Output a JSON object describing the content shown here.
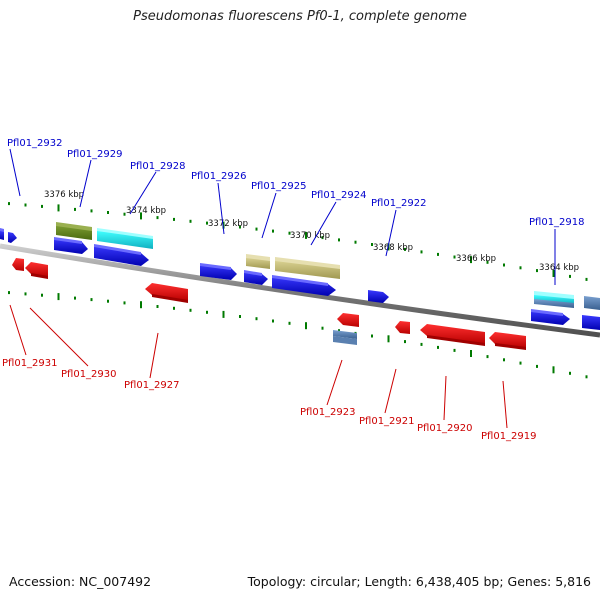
{
  "title": "Pseudomonas fluorescens Pf0-1, complete genome",
  "accession_text": "Accession: NC_007492",
  "summary_text": "Topology: circular; Length: 6,438,405 bp; Genes: 5,816",
  "colors": {
    "forward_label": "#0000cc",
    "reverse_label": "#cc0000",
    "forward_gene": "#0000ee",
    "reverse_gene": "#ee0000",
    "backbone": "#888888",
    "tick": "#007a00"
  },
  "kbp_labels": [
    "3376 kbp",
    "3374 kbp",
    "3372 kbp",
    "3370 kbp",
    "3368 kbp",
    "3366 kbp",
    "3364 kbp"
  ],
  "forward_labels": [
    "Pfl01_2932",
    "Pfl01_2929",
    "Pfl01_2928",
    "Pfl01_2926",
    "Pfl01_2925",
    "Pfl01_2924",
    "Pfl01_2922",
    "Pfl01_2918"
  ],
  "reverse_labels": [
    "Pfl01_2931",
    "Pfl01_2930",
    "Pfl01_2927",
    "Pfl01_2923",
    "Pfl01_2921",
    "Pfl01_2920",
    "Pfl01_2919"
  ]
}
